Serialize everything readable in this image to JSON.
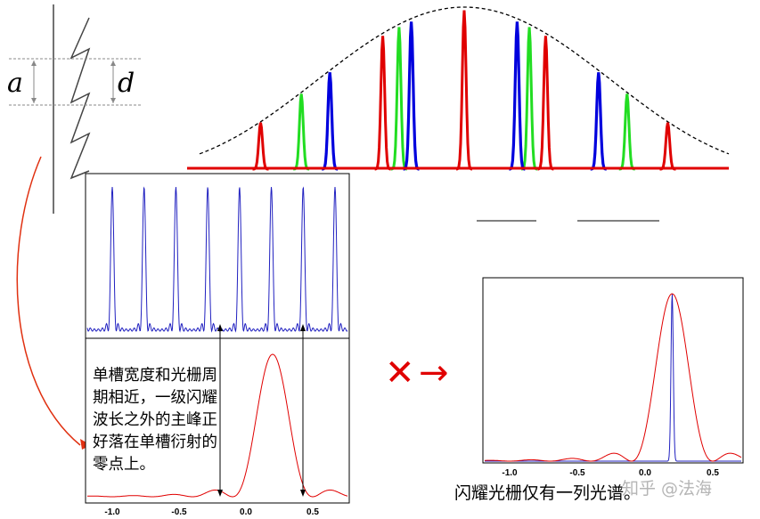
{
  "labels": {
    "a": "a",
    "d": "d"
  },
  "note_text": "单槽宽度和光栅周\n期相近，一级闪耀\n波长之外的主峰正\n好落在单槽衍射的\n零点上。",
  "caption": "闪耀光栅仅有一列光谱。",
  "watermark": "知乎 @法海",
  "symbols": {
    "cross": "✕",
    "arrow": "→"
  },
  "colors": {
    "red": "#e00000",
    "green": "#22dd22",
    "blue": "#0000dd",
    "accent_red": "#e03010"
  },
  "ticks": [
    "-1.0",
    "-0.5",
    "0.0",
    "0.5"
  ],
  "tick_values": [
    -1.0,
    -0.5,
    0.0,
    0.5
  ],
  "spectrum": {
    "envelope": "dashed",
    "red_peaks": [
      -0.5,
      -0.2,
      0.0,
      0.2,
      0.5
    ],
    "green_peaks": [
      -0.4,
      -0.16,
      0.16,
      0.4
    ],
    "blue_peaks": [
      -0.33,
      -0.13,
      0.13,
      0.33
    ]
  }
}
